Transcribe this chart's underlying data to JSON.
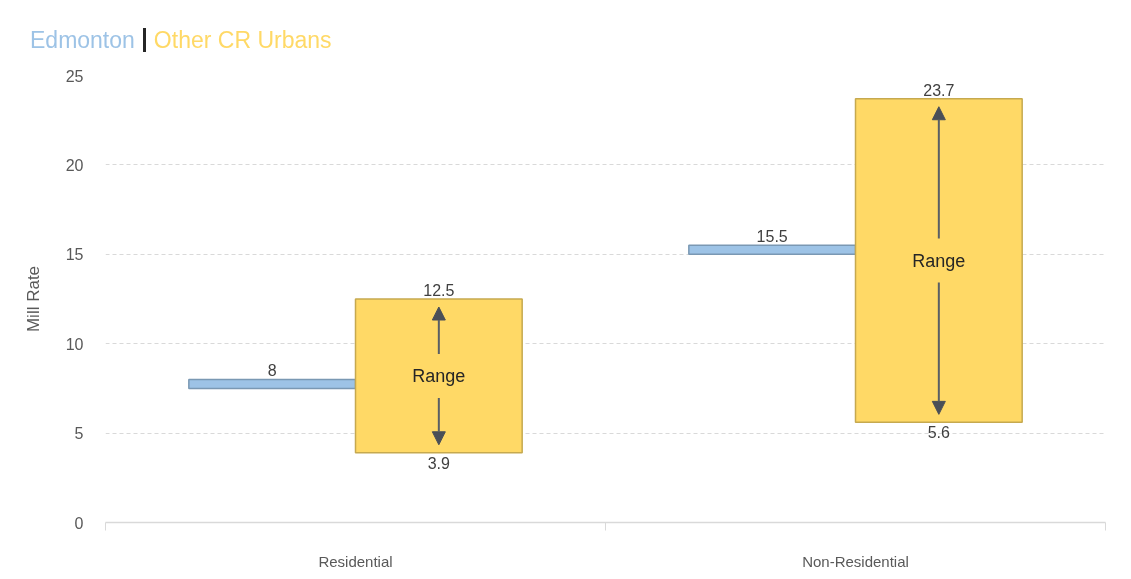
{
  "chart_data": {
    "type": "bar",
    "categories": [
      "Residential",
      "Non-Residential"
    ],
    "ylabel": "Mill Rate",
    "ylim": [
      0,
      25
    ],
    "yticks": [
      0,
      5,
      10,
      15,
      20,
      25
    ],
    "grid": "y",
    "legend": "top left",
    "series": [
      {
        "name": "Edmonton",
        "color": "#9dc3e6",
        "base": [
          7.5,
          15
        ],
        "values": [
          0.5,
          0.5
        ]
      },
      {
        "name": "Other CR Urbans",
        "color": "#ffd966",
        "base": [
          3.9,
          5.6
        ],
        "values": [
          8.6,
          18.1
        ]
      }
    ],
    "annotations": [
      {
        "text": "8",
        "y": 8
      },
      {
        "text": "12.5",
        "y": 12.5
      },
      {
        "text": "3.9",
        "y": 3.9
      },
      "Range",
      {
        "text": "15.5",
        "y": 15.5
      },
      {
        "text": "23.7",
        "y": 23.7
      },
      {
        "text": "5.6",
        "y": 5.6
      },
      "Range"
    ]
  }
}
